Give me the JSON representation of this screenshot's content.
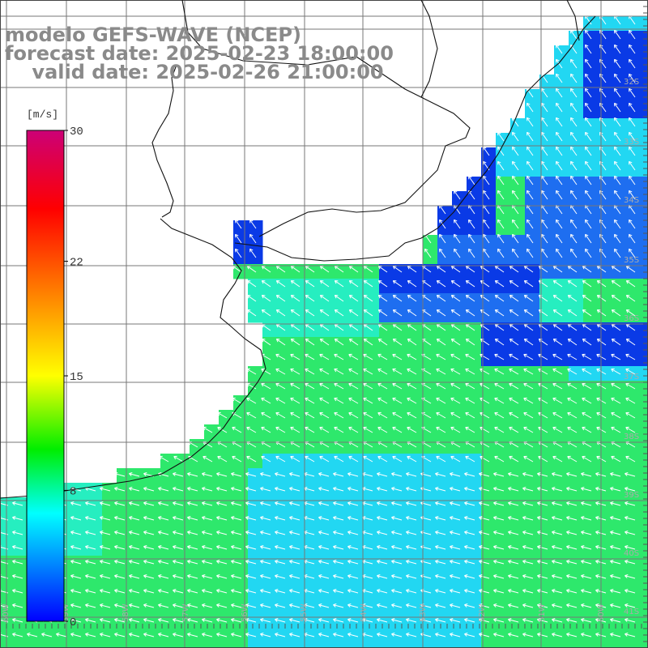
{
  "title": {
    "line1": "modelo GEFS-WAVE (NCEP)",
    "line2": "forecast date: 2025-02-23 18:00:00",
    "line3": "    valid date: 2025-02-26 21:00:00"
  },
  "colorbar": {
    "units": "[m/s]",
    "ticks": [
      "30",
      "22",
      "15",
      "8",
      "0"
    ],
    "tick_values": [
      30,
      22,
      15,
      8,
      0
    ],
    "colors": [
      "#cc0077",
      "#ff0000",
      "#ff7f00",
      "#ffff00",
      "#00ee00",
      "#00ffff",
      "#0000ff"
    ]
  },
  "grid": {
    "longitude_labels": [
      "60W",
      "59W",
      "58W",
      "57W",
      "56W",
      "55W",
      "54W",
      "53W",
      "52W",
      "51W",
      "50W"
    ],
    "latitude_labels": [
      "32S",
      "33S",
      "34S",
      "35S",
      "36S",
      "37S",
      "38S",
      "39S",
      "40S",
      "41S"
    ]
  },
  "wind_field": {
    "description_colors": {
      "land": "#ffffff",
      "deep_blue": "#0a3ae6",
      "blue": "#1e6ef0",
      "cyan": "#22d7f2",
      "aqua": "#26eec0",
      "green": "#2ee86c"
    },
    "arrow_color": "#ffffff"
  }
}
